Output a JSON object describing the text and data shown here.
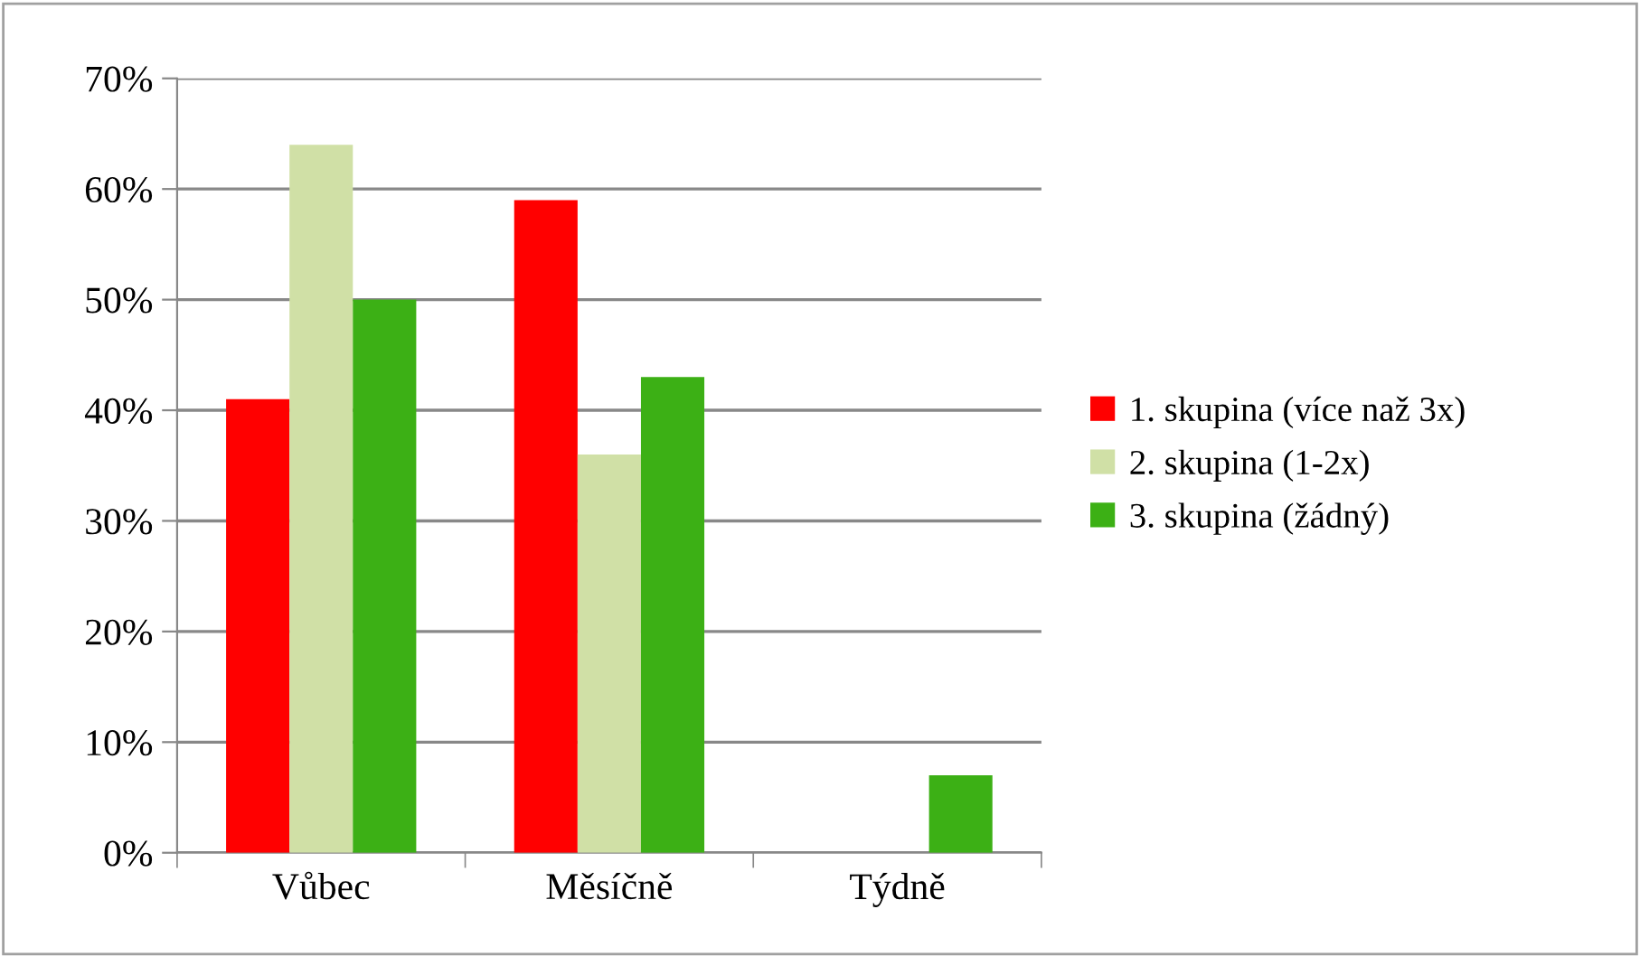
{
  "chart_data": {
    "type": "bar",
    "categories": [
      "Vůbec",
      "Měsíčně",
      "Týdně"
    ],
    "series": [
      {
        "name": "1. skupina (více naž 3x)",
        "color": "#ff0000",
        "values": [
          41,
          59,
          0
        ]
      },
      {
        "name": "2. skupina (1-2x)",
        "color": "#d0e0a6",
        "values": [
          64,
          36,
          0
        ]
      },
      {
        "name": "3. skupina (žádný)",
        "color": "#3cb015",
        "values": [
          50,
          43,
          7
        ]
      }
    ],
    "ylim": [
      0,
      70
    ],
    "yticks": [
      {
        "value": 0,
        "label": "0%"
      },
      {
        "value": 10,
        "label": "10%"
      },
      {
        "value": 20,
        "label": "20%"
      },
      {
        "value": 30,
        "label": "30%"
      },
      {
        "value": 40,
        "label": "40%"
      },
      {
        "value": 50,
        "label": "50%"
      },
      {
        "value": 60,
        "label": "60%"
      },
      {
        "value": 70,
        "label": "70%"
      }
    ],
    "grid": "y",
    "legend": "right"
  }
}
